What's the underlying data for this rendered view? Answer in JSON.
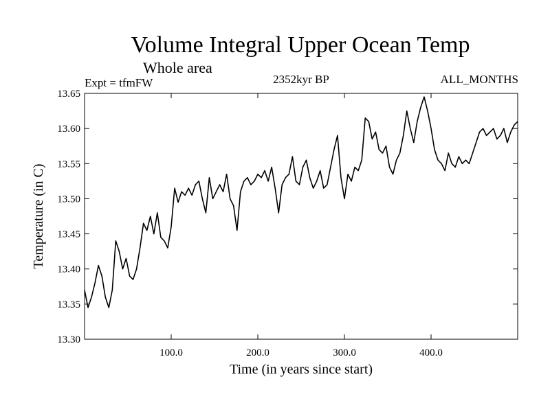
{
  "chart_data": {
    "type": "line",
    "title": "Volume Integral Upper Ocean Temp",
    "subtitle": "Whole area",
    "annotations": {
      "experiment": "Expt = tfmFW",
      "period": "2352kyr BP",
      "months": "ALL_MONTHS"
    },
    "xlabel": "Time (in years since start)",
    "ylabel": "Temperature (in C)",
    "xlim": [
      0,
      500
    ],
    "ylim": [
      13.3,
      13.65
    ],
    "xticks": [
      100,
      200,
      300,
      400
    ],
    "xtick_labels": [
      "100.0",
      "200.0",
      "300.0",
      "400.0"
    ],
    "yticks": [
      13.3,
      13.35,
      13.4,
      13.45,
      13.5,
      13.55,
      13.6,
      13.65
    ],
    "ytick_labels": [
      "13.30",
      "13.35",
      "13.40",
      "13.45",
      "13.50",
      "13.55",
      "13.60",
      "13.65"
    ],
    "series": [
      {
        "name": "tfmFW",
        "x": [
          0,
          4,
          8,
          12,
          16,
          20,
          24,
          28,
          32,
          36,
          40,
          44,
          48,
          52,
          56,
          60,
          64,
          68,
          72,
          76,
          80,
          84,
          88,
          92,
          96,
          100,
          104,
          108,
          112,
          116,
          120,
          124,
          128,
          132,
          136,
          140,
          144,
          148,
          152,
          156,
          160,
          164,
          168,
          172,
          176,
          180,
          184,
          188,
          192,
          196,
          200,
          204,
          208,
          212,
          216,
          220,
          224,
          228,
          232,
          236,
          240,
          244,
          248,
          252,
          256,
          260,
          264,
          268,
          272,
          276,
          280,
          284,
          288,
          292,
          296,
          300,
          304,
          308,
          312,
          316,
          320,
          324,
          328,
          332,
          336,
          340,
          344,
          348,
          352,
          356,
          360,
          364,
          368,
          372,
          376,
          380,
          384,
          388,
          392,
          396,
          400,
          404,
          408,
          412,
          416,
          420,
          424,
          428,
          432,
          436,
          440,
          444,
          448,
          452,
          456,
          460,
          464,
          468,
          472,
          476,
          480,
          484,
          488,
          492,
          496,
          500
        ],
        "y": [
          13.37,
          13.345,
          13.36,
          13.38,
          13.405,
          13.39,
          13.36,
          13.345,
          13.37,
          13.44,
          13.425,
          13.4,
          13.415,
          13.39,
          13.385,
          13.4,
          13.43,
          13.465,
          13.455,
          13.475,
          13.45,
          13.48,
          13.445,
          13.44,
          13.43,
          13.46,
          13.515,
          13.495,
          13.51,
          13.505,
          13.515,
          13.505,
          13.52,
          13.525,
          13.5,
          13.48,
          13.53,
          13.5,
          13.51,
          13.52,
          13.51,
          13.535,
          13.5,
          13.49,
          13.455,
          13.51,
          13.525,
          13.53,
          13.52,
          13.525,
          13.535,
          13.53,
          13.54,
          13.525,
          13.545,
          13.515,
          13.48,
          13.52,
          13.53,
          13.535,
          13.56,
          13.525,
          13.52,
          13.545,
          13.555,
          13.53,
          13.515,
          13.525,
          13.54,
          13.515,
          13.52,
          13.545,
          13.57,
          13.59,
          13.53,
          13.5,
          13.535,
          13.525,
          13.545,
          13.54,
          13.555,
          13.615,
          13.61,
          13.585,
          13.595,
          13.57,
          13.565,
          13.575,
          13.545,
          13.535,
          13.555,
          13.565,
          13.59,
          13.625,
          13.6,
          13.58,
          13.61,
          13.63,
          13.645,
          13.625,
          13.6,
          13.57,
          13.555,
          13.55,
          13.54,
          13.565,
          13.55,
          13.545,
          13.56,
          13.55,
          13.555,
          13.55,
          13.565,
          13.58,
          13.595,
          13.6,
          13.59,
          13.595,
          13.6,
          13.585,
          13.59,
          13.6,
          13.58,
          13.595,
          13.605,
          13.61
        ]
      }
    ]
  }
}
